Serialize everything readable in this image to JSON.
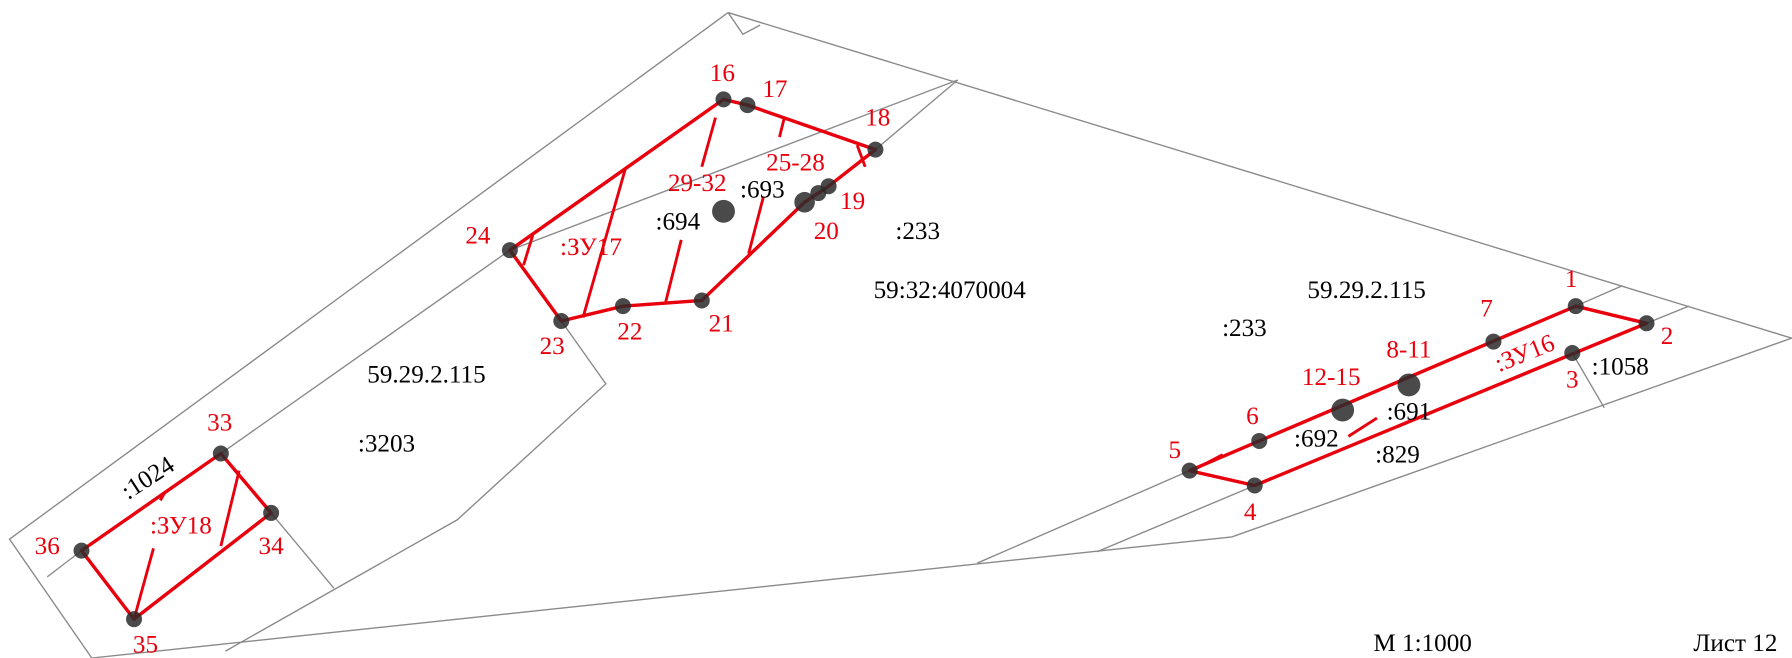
{
  "points": {
    "p1": "1",
    "p2": "2",
    "p3": "3",
    "p4": "4",
    "p5": "5",
    "p6": "6",
    "p7": "7",
    "p8_11": "8-11",
    "p12_15": "12-15",
    "p16": "16",
    "p17": "17",
    "p18": "18",
    "p19": "19",
    "p20": "20",
    "p21": "21",
    "p22": "22",
    "p23": "23",
    "p24": "24",
    "p25_28": "25-28",
    "p29_32": "29-32",
    "p33": "33",
    "p34": "34",
    "p35": "35",
    "p36": "36"
  },
  "parcels": {
    "zu16": ":ЗУ16",
    "zu17": ":ЗУ17",
    "zu18": ":ЗУ18"
  },
  "cadastral": {
    "n694": ":694",
    "n693": ":693",
    "n233a": ":233",
    "quarter": "59:32:4070004",
    "zone_a": "59.29.2.115",
    "n3203": ":3203",
    "n1024": ":1024",
    "zone_b": "59.29.2.115",
    "n233b": ":233",
    "n1058": ":1058",
    "n691": ":691",
    "n692": ":692",
    "n829": ":829"
  },
  "footer": {
    "scale": "М 1:1000",
    "sheet": "Лист 12"
  }
}
